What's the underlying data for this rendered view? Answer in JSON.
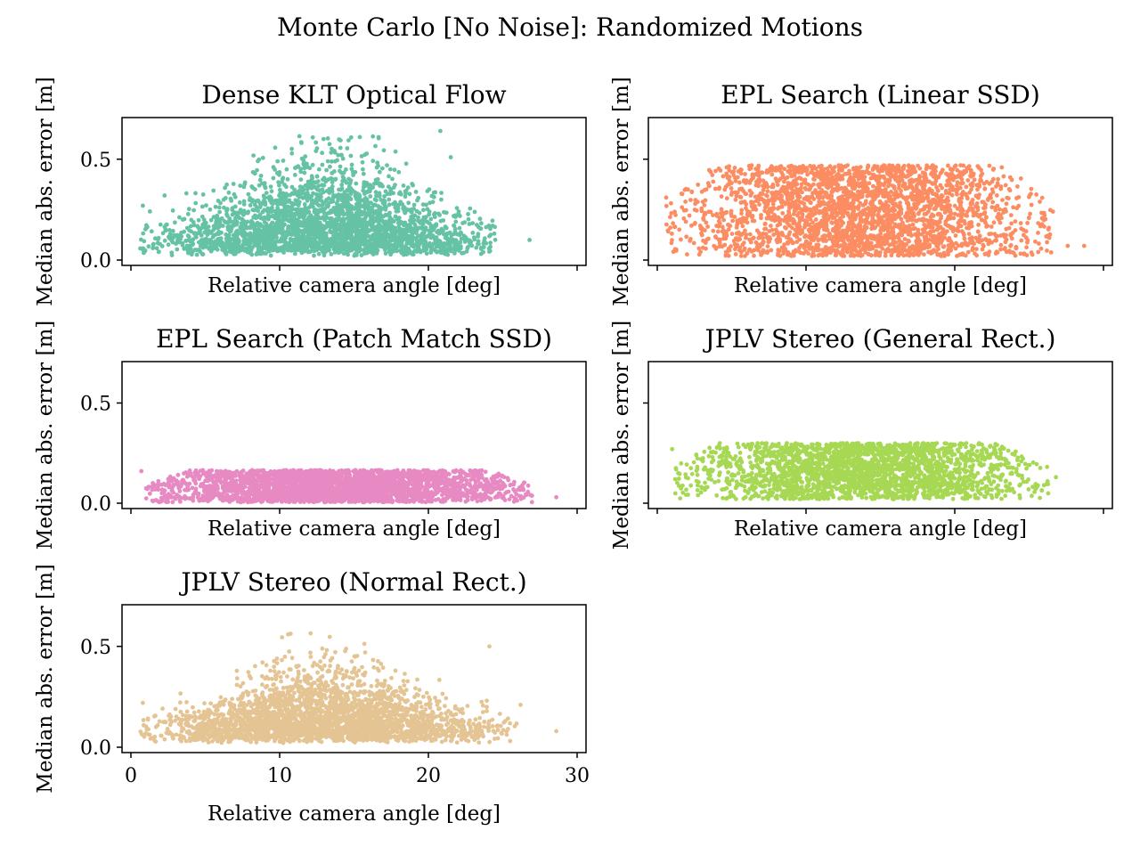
{
  "figure": {
    "title": "Monte Carlo [No Noise]: Randomized Motions"
  },
  "chart_data": [
    {
      "type": "scatter",
      "title": "Dense KLT Optical Flow",
      "xlabel": "Relative camera angle [deg]",
      "ylabel": "Median abs. error [m]",
      "xlim": [
        0,
        30
      ],
      "ylim": [
        0,
        0.68
      ],
      "xticks": [
        "0",
        "10",
        "20",
        "30"
      ],
      "yticks": [
        "0.0",
        "0.5"
      ],
      "show_xtick_labels": false,
      "show_ytick_labels": true,
      "color": "#66c2a5",
      "point_count": 2800,
      "y_max_observed": 0.64,
      "spread": "wide, peaking around 10–18 deg",
      "outliers": [
        [
          0.8,
          0.27
        ],
        [
          26.8,
          0.1
        ],
        [
          21.5,
          0.51
        ],
        [
          20.8,
          0.64
        ]
      ]
    },
    {
      "type": "scatter",
      "title": "EPL Search (Linear SSD)",
      "xlabel": "Relative camera angle [deg]",
      "ylabel": "Median abs. error [m]",
      "xlim": [
        0,
        30
      ],
      "ylim": [
        0,
        0.68
      ],
      "xticks": [
        "0",
        "10",
        "20",
        "30"
      ],
      "yticks": [
        "0.0",
        "0.5"
      ],
      "show_xtick_labels": false,
      "show_ytick_labels": false,
      "color": "#fc8d62",
      "point_count": 2800,
      "y_max_observed": 0.49,
      "spread": "uniform band 0.02–0.49",
      "outliers": [
        [
          0.6,
          0.31
        ],
        [
          28.7,
          0.07
        ],
        [
          27.6,
          0.07
        ],
        [
          26.6,
          0.24
        ]
      ]
    },
    {
      "type": "scatter",
      "title": "EPL Search (Patch Match SSD)",
      "xlabel": "Relative camera angle [deg]",
      "ylabel": "Median abs. error [m]",
      "xlim": [
        0,
        30
      ],
      "ylim": [
        0,
        0.68
      ],
      "xticks": [
        "0",
        "10",
        "20",
        "30"
      ],
      "yticks": [
        "0.0",
        "0.5"
      ],
      "show_xtick_labels": false,
      "show_ytick_labels": true,
      "color": "#e78ac3",
      "point_count": 2800,
      "y_max_observed": 0.17,
      "spread": "narrow band 0.01–0.17",
      "outliers": [
        [
          0.7,
          0.16
        ],
        [
          28.6,
          0.03
        ],
        [
          25.8,
          0.06
        ]
      ]
    },
    {
      "type": "scatter",
      "title": "JPLV Stereo (General Rect.)",
      "xlabel": "Relative camera angle [deg]",
      "ylabel": "Median abs. error [m]",
      "xlim": [
        0,
        30
      ],
      "ylim": [
        0,
        0.68
      ],
      "xticks": [
        "0",
        "10",
        "20",
        "30"
      ],
      "yticks": [
        "0.0",
        "0.5"
      ],
      "show_xtick_labels": false,
      "show_ytick_labels": false,
      "color": "#a6d854",
      "point_count": 2400,
      "y_max_observed": 0.32,
      "spread": "band 0.02–0.32",
      "outliers": [
        [
          1.0,
          0.27
        ],
        [
          26.8,
          0.13
        ],
        [
          26.0,
          0.09
        ]
      ]
    },
    {
      "type": "scatter",
      "title": "JPLV Stereo (Normal Rect.)",
      "xlabel": "Relative camera angle [deg]",
      "ylabel": "Median abs. error [m]",
      "xlim": [
        0,
        30
      ],
      "ylim": [
        0,
        0.68
      ],
      "xticks": [
        "0",
        "10",
        "20",
        "30"
      ],
      "yticks": [
        "0.0",
        "0.5"
      ],
      "show_xtick_labels": true,
      "show_ytick_labels": true,
      "color": "#e5c494",
      "point_count": 2800,
      "y_max_observed": 0.57,
      "spread": "wide, peaking around 10–18 deg",
      "outliers": [
        [
          0.8,
          0.22
        ],
        [
          28.6,
          0.08
        ],
        [
          26.2,
          0.21
        ],
        [
          24.1,
          0.5
        ]
      ]
    }
  ]
}
